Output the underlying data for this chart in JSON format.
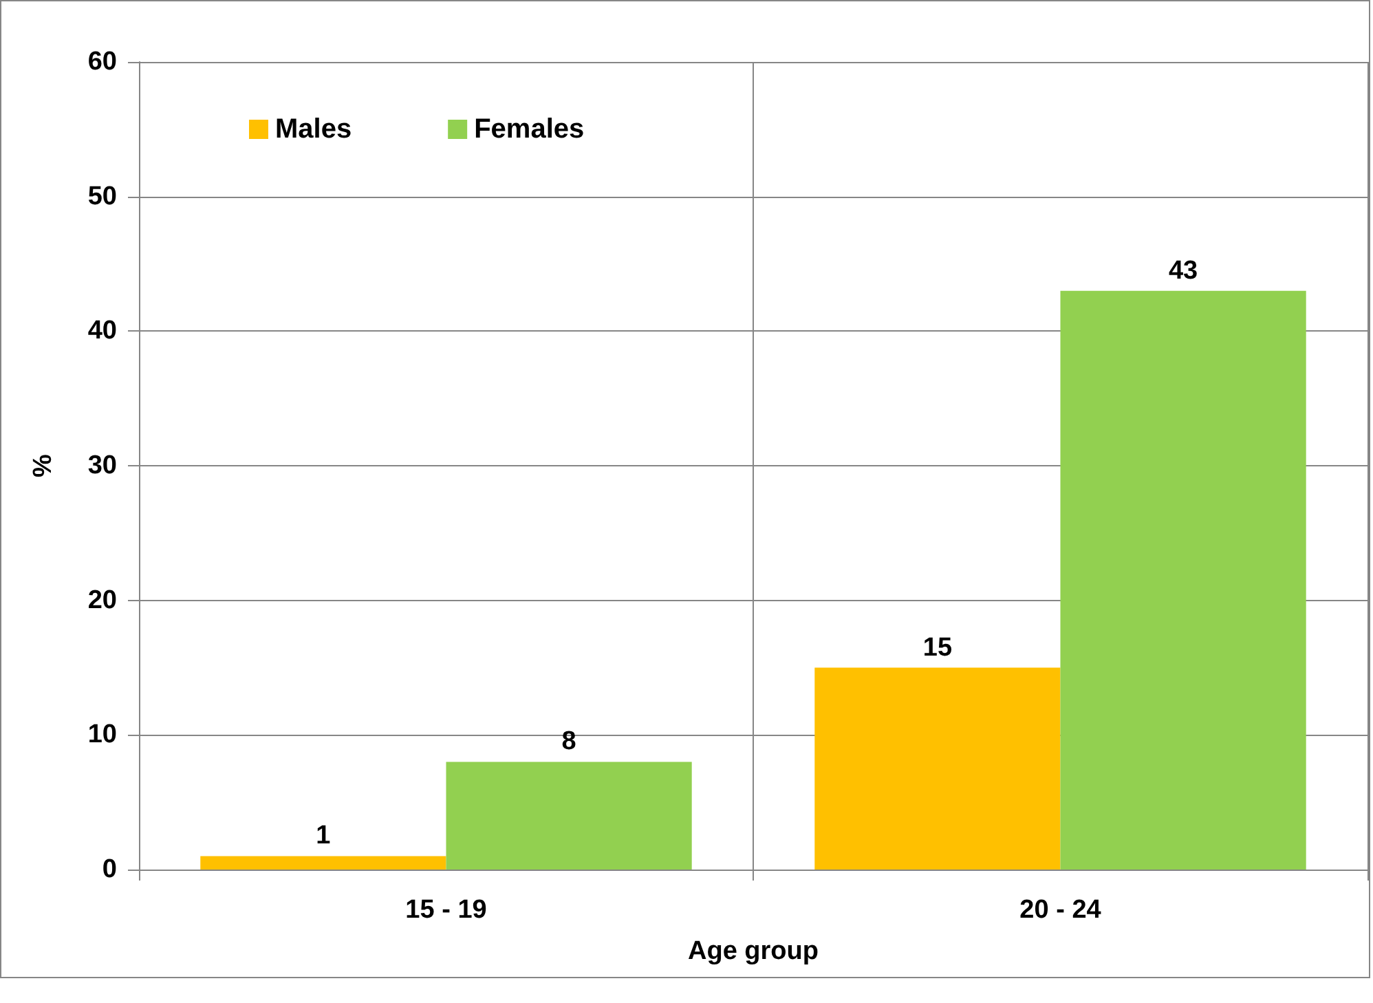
{
  "chart_data": {
    "type": "bar",
    "xlabel": "Age group",
    "ylabel": "%",
    "categories": [
      "15 - 19",
      "20 - 24"
    ],
    "series": [
      {
        "name": "Males",
        "color": "#ffc000",
        "values": [
          1,
          15
        ]
      },
      {
        "name": "Females",
        "color": "#92d050",
        "values": [
          8,
          43
        ]
      }
    ],
    "ylim": [
      0,
      60
    ],
    "yticks": [
      0,
      10,
      20,
      30,
      40,
      50,
      60
    ],
    "grid": true,
    "legend": "top left",
    "data_labels": true
  }
}
